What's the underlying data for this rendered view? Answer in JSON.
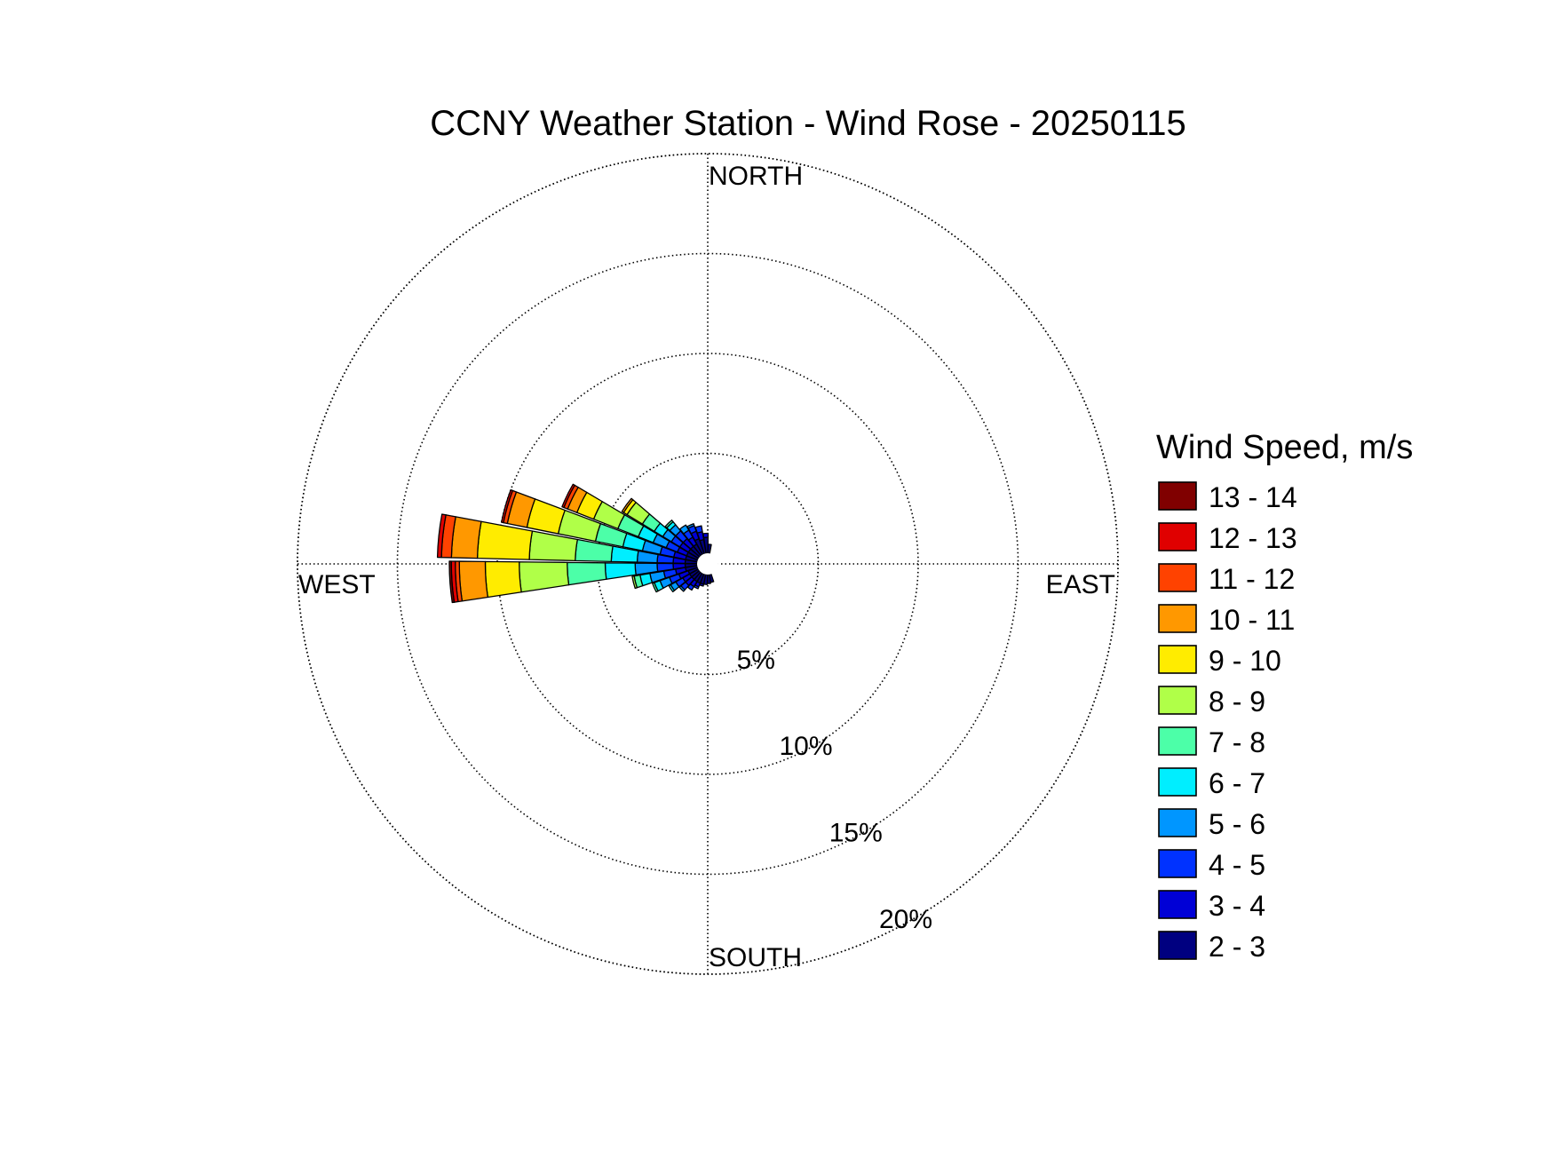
{
  "chart_data": {
    "type": "wind-rose",
    "title": "CCNY Weather Station - Wind Rose - 20250115",
    "directions": {
      "north": "NORTH",
      "south": "SOUTH",
      "east": "EAST",
      "west": "WEST"
    },
    "radial_ticks": [
      5,
      10,
      15,
      20
    ],
    "radial_tick_labels": [
      "5%",
      "10%",
      "15%",
      "20%"
    ],
    "radial_max": 20,
    "legend_title": "Wind Speed, m/s",
    "speed_bins": [
      {
        "label": "2 - 3",
        "color": "#000080"
      },
      {
        "label": "3 - 4",
        "color": "#0000d6"
      },
      {
        "label": "4 - 5",
        "color": "#0032ff"
      },
      {
        "label": "5 - 6",
        "color": "#0096ff"
      },
      {
        "label": "6 - 7",
        "color": "#00eeff"
      },
      {
        "label": "7 - 8",
        "color": "#4cffa8"
      },
      {
        "label": "8 - 9",
        "color": "#b0ff48"
      },
      {
        "label": "9 - 10",
        "color": "#ffec00"
      },
      {
        "label": "10 - 11",
        "color": "#ff9800"
      },
      {
        "label": "11 - 12",
        "color": "#ff4200"
      },
      {
        "label": "12 - 13",
        "color": "#e00000"
      },
      {
        "label": "13 - 14",
        "color": "#800000"
      }
    ],
    "sectors": [
      {
        "direction_deg": 356,
        "cumulative": [
          0.8,
          1.0
        ]
      },
      {
        "direction_deg": 346,
        "cumulative": [
          0.7,
          1.1,
          1.4
        ]
      },
      {
        "direction_deg": 336,
        "cumulative": [
          0.8,
          1.2,
          1.5,
          1.6
        ]
      },
      {
        "direction_deg": 326,
        "cumulative": [
          0.6,
          1.0,
          1.4,
          1.7
        ]
      },
      {
        "direction_deg": 316,
        "cumulative": [
          0.6,
          1.1,
          1.6,
          2.0,
          2.2,
          2.3
        ]
      },
      {
        "direction_deg": 306,
        "cumulative": [
          0.6,
          1.1,
          1.6,
          2.1,
          2.6,
          3.3,
          4.2,
          4.4,
          4.5
        ]
      },
      {
        "direction_deg": 296,
        "cumulative": [
          0.6,
          1.1,
          1.7,
          2.4,
          3.2,
          4.3,
          5.6,
          6.5,
          7.0,
          7.2,
          7.3
        ]
      },
      {
        "direction_deg": 286,
        "cumulative": [
          0.6,
          1.2,
          1.9,
          2.8,
          3.8,
          5.2,
          7.1,
          8.7,
          9.7,
          9.9,
          10.0
        ]
      },
      {
        "direction_deg": 276,
        "cumulative": [
          0.6,
          1.2,
          2.0,
          3.0,
          4.3,
          6.1,
          8.4,
          11.0,
          12.3,
          12.8,
          13.0
        ]
      },
      {
        "direction_deg": 266,
        "cumulative": [
          0.6,
          1.2,
          2.0,
          3.1,
          4.6,
          6.5,
          8.9,
          10.6,
          11.9,
          12.1,
          12.3,
          12.4
        ]
      },
      {
        "direction_deg": 256,
        "cumulative": [
          0.6,
          1.1,
          1.7,
          2.4,
          2.9,
          3.2,
          3.3
        ]
      },
      {
        "direction_deg": 246,
        "cumulative": [
          0.5,
          1.0,
          1.5,
          2.0,
          2.3,
          2.4
        ]
      },
      {
        "direction_deg": 236,
        "cumulative": [
          0.5,
          0.9,
          1.3,
          1.6,
          1.7
        ]
      },
      {
        "direction_deg": 226,
        "cumulative": [
          0.5,
          0.9,
          1.2,
          1.3
        ]
      },
      {
        "direction_deg": 216,
        "cumulative": [
          0.5,
          0.8,
          1.0
        ]
      },
      {
        "direction_deg": 206,
        "cumulative": [
          0.5,
          0.7,
          0.8
        ]
      },
      {
        "direction_deg": 196,
        "cumulative": [
          0.5,
          0.6
        ]
      },
      {
        "direction_deg": 186,
        "cumulative": [
          0.5
        ]
      },
      {
        "direction_deg": 176,
        "cumulative": [
          0.45
        ]
      },
      {
        "direction_deg": 166,
        "cumulative": [
          0.4
        ]
      },
      {
        "direction_deg": 6,
        "cumulative": [
          0.45
        ]
      }
    ]
  }
}
